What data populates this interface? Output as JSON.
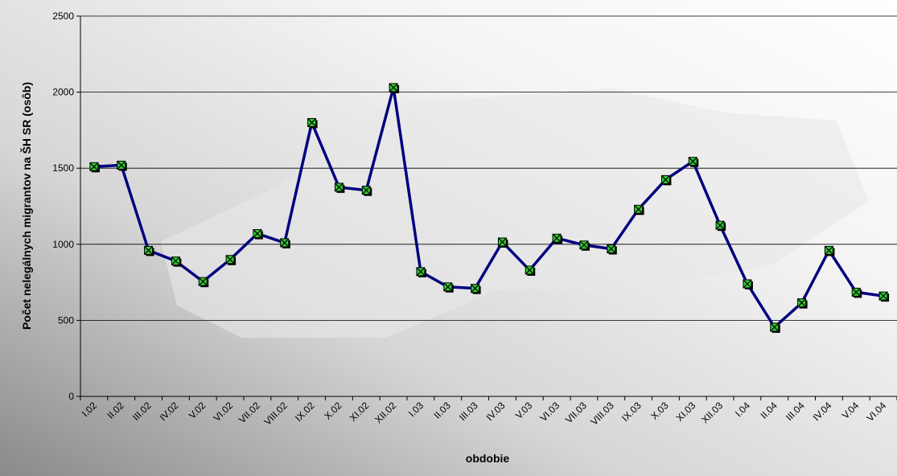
{
  "chart_data": {
    "type": "line",
    "xlabel": "obdobie",
    "ylabel": "Počet nelegálnych migrantov na ŠH SR (osôb)",
    "categories": [
      "I.02",
      "II.02",
      "III.02",
      "IV.02",
      "V.02",
      "VI.02",
      "VII.02",
      "VIII.02",
      "IX.02",
      "X.02",
      "XI.02",
      "XII.02",
      "I.03",
      "II.03",
      "III.03",
      "IV.03",
      "V.03",
      "VI.03",
      "VII.03",
      "VIII.03",
      "IX.03",
      "X.03",
      "XI.03",
      "XII.03",
      "I.04",
      "II.04",
      "III.04",
      "IV.04",
      "V.04",
      "VI.04"
    ],
    "series": [
      {
        "color": "#000080",
        "marker_color": "#33cc33",
        "values": [
          1510,
          1520,
          960,
          890,
          755,
          900,
          1070,
          1010,
          1800,
          1375,
          1355,
          2030,
          820,
          720,
          710,
          1015,
          830,
          1040,
          995,
          970,
          1230,
          1425,
          1545,
          1125,
          740,
          455,
          615,
          960,
          685,
          660
        ]
      }
    ],
    "ylim": [
      0,
      2500
    ],
    "yticks": [
      0,
      500,
      1000,
      1500,
      2000,
      2500
    ],
    "grid": true
  }
}
